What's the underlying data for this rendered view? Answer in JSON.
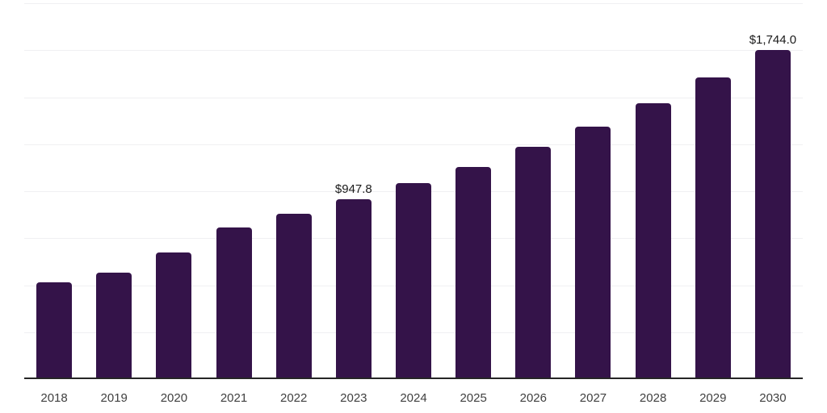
{
  "chart_data": {
    "type": "bar",
    "title": "",
    "xlabel": "",
    "ylabel": "",
    "categories": [
      "2018",
      "2019",
      "2020",
      "2021",
      "2022",
      "2023",
      "2024",
      "2025",
      "2026",
      "2027",
      "2028",
      "2029",
      "2030"
    ],
    "values": [
      505,
      560,
      665,
      800,
      872,
      947.8,
      1035,
      1120,
      1228,
      1335,
      1458,
      1595,
      1744
    ],
    "data_labels": [
      null,
      null,
      null,
      null,
      null,
      "$947.8",
      null,
      null,
      null,
      null,
      null,
      null,
      "$1,744.0"
    ],
    "ylim": [
      0,
      2000
    ],
    "gridline_step": 250,
    "grid": true,
    "legend_position": "none",
    "y_axis_labels_visible": false,
    "colors": {
      "bar": "#341349",
      "axis_line": "#262626",
      "gridline": "#f0f0f2",
      "data_label": "#1a1a1a",
      "tick_label": "#404040",
      "background": "#ffffff"
    }
  }
}
